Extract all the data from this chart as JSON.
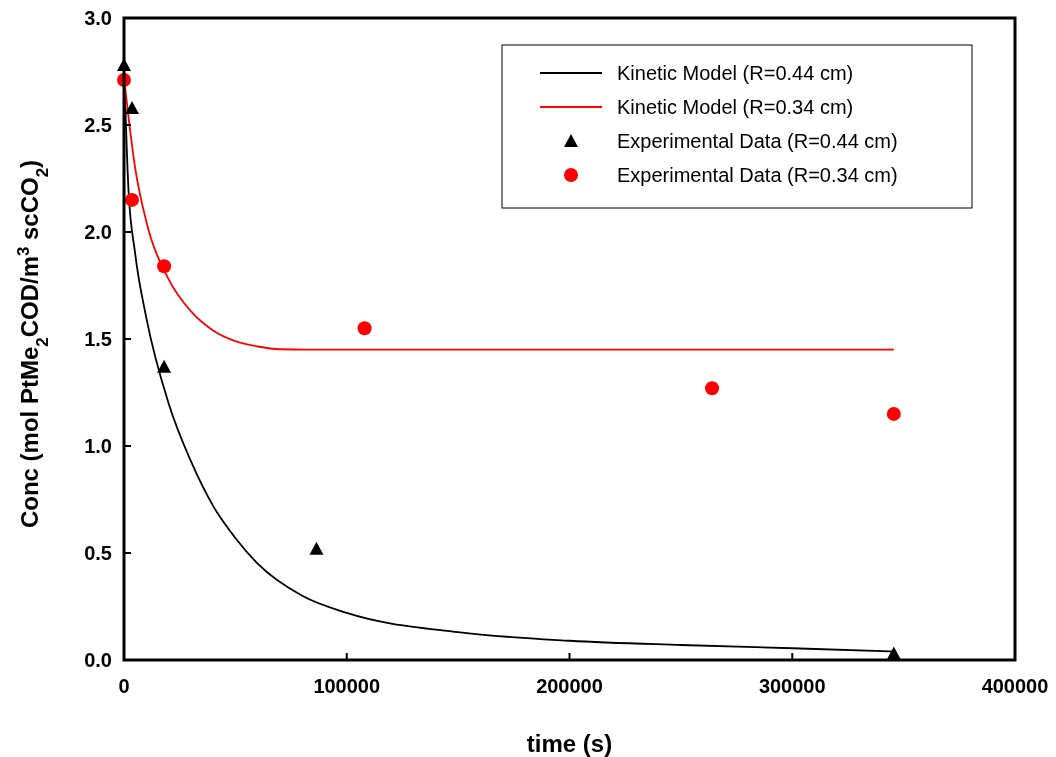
{
  "chart_data": {
    "type": "line",
    "xlabel": "time (s)",
    "ylabel": "Conc (mol PtMe$_{2}$COD/m$^{3}$ scCO$_{2}$)",
    "xlim": [
      0,
      400000
    ],
    "xticks": [
      0,
      100000,
      200000,
      300000,
      400000
    ],
    "ylim": [
      0,
      3
    ],
    "yticks": [
      {
        "value": 0,
        "label": "0.0"
      },
      {
        "value": 0.5,
        "label": "0.5"
      },
      {
        "value": 1,
        "label": "1.0"
      },
      {
        "value": 1.5,
        "label": "1.5"
      },
      {
        "value": 2,
        "label": "2.0"
      },
      {
        "value": 2.5,
        "label": "2.5"
      },
      {
        "value": 3,
        "label": "3.0"
      }
    ],
    "grid": false,
    "legend": "top right",
    "series": [
      {
        "name": "Kinetic Model (R=0.44 cm)",
        "color": "#000000",
        "marker": "none",
        "line_style": "solid",
        "x": [
          0,
          2000,
          5000,
          10000,
          20000,
          30000,
          40000,
          50000,
          60000,
          80000,
          100000,
          150000,
          200000,
          250000,
          300000,
          345600
        ],
        "values": [
          2.78,
          2.2,
          1.9,
          1.6,
          1.2,
          0.93,
          0.72,
          0.57,
          0.45,
          0.3,
          0.22,
          0.13,
          0.09,
          0.07,
          0.055,
          0.04
        ]
      },
      {
        "name": "Kinetic Model (R=0.34 cm)",
        "color": "#ff0000",
        "marker": "none",
        "line_style": "solid",
        "x": [
          0,
          5000,
          10000,
          20000,
          30000,
          40000,
          50000,
          60000,
          70000,
          82000,
          345600
        ],
        "values": [
          2.72,
          2.3,
          2.05,
          1.78,
          1.63,
          1.54,
          1.49,
          1.465,
          1.452,
          1.45,
          1.45
        ]
      },
      {
        "name": "Experimental Data (R=0.44 cm)",
        "type": "scatter",
        "color": "#000000",
        "marker": "triangle",
        "x": [
          0,
          3600,
          18000,
          86400,
          345600
        ],
        "values": [
          2.78,
          2.58,
          1.37,
          0.52,
          0.03
        ]
      },
      {
        "name": "Experimental Data (R=0.34 cm)",
        "type": "scatter",
        "color": "#ff0000",
        "marker": "circle",
        "x": [
          0,
          3600,
          18000,
          108000,
          264000,
          345600
        ],
        "values": [
          2.71,
          2.15,
          1.84,
          1.55,
          1.27,
          1.15
        ]
      }
    ]
  }
}
